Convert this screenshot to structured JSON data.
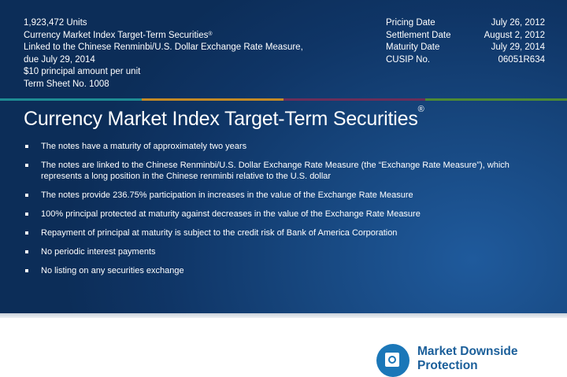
{
  "header": {
    "units": "1,923,472 Units",
    "product_name": "Currency Market Index Target-Term Securities",
    "product_mark": "®",
    "linked_to": "Linked to the Chinese Renminbi/U.S. Dollar Exchange Rate Measure,",
    "due": "due July 29, 2014",
    "principal": "$10 principal amount per unit",
    "term_sheet": "Term Sheet No. 1008",
    "details": [
      {
        "label": "Pricing Date",
        "value": "July 26, 2012"
      },
      {
        "label": "Settlement Date",
        "value": "August 2, 2012"
      },
      {
        "label": "Maturity Date",
        "value": "July 29, 2014"
      },
      {
        "label": "CUSIP No.",
        "value": "06051R634"
      }
    ]
  },
  "title": {
    "text": "Currency Market Index Target-Term Securities",
    "mark": "®"
  },
  "bullets": [
    "The notes have a maturity of approximately two years",
    "The notes are linked to the Chinese Renminbi/U.S. Dollar Exchange Rate Measure (the “Exchange Rate Measure”),  which represents a long position in the Chinese renminbi relative to the U.S. dollar",
    "The notes provide 236.75% participation in increases in the value of the Exchange Rate Measure",
    "100% principal protected at maturity against decreases in the value of the Exchange Rate Measure",
    "Repayment of principal at maturity is subject to the credit risk of Bank of America Corporation",
    "No periodic interest payments",
    "No listing on any securities exchange"
  ],
  "badge": {
    "icon": "safe-icon",
    "line1": "Market Downside",
    "line2": "Protection",
    "color": "#1b77b8"
  },
  "colors": {
    "panel": "#0f3566",
    "stripe_teal": "#1e8c94",
    "stripe_gold": "#c38a26",
    "stripe_plum": "#6c2e5a",
    "stripe_green": "#4d8b34"
  }
}
